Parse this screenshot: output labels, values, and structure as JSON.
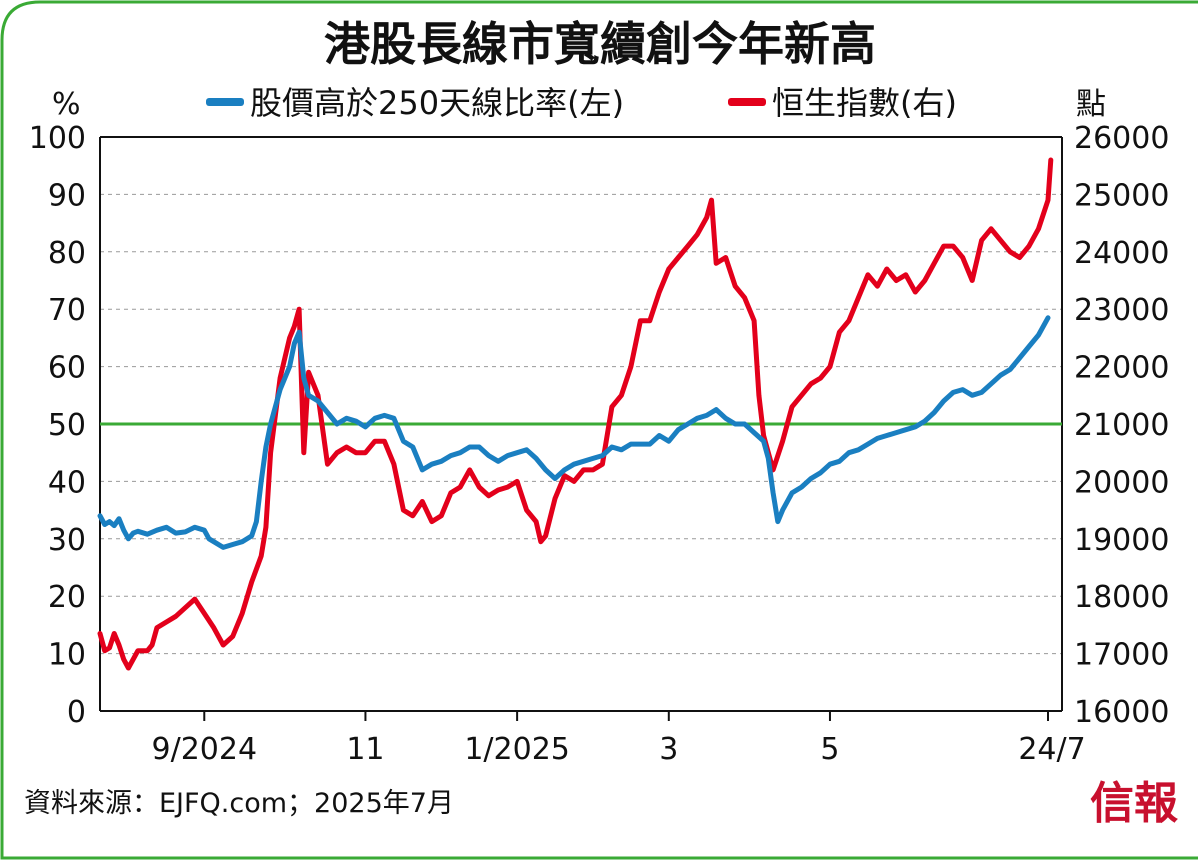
{
  "chart_data": {
    "type": "line",
    "title": "港股長線市寬續創今年新高",
    "ylabel_left": "%",
    "ylabel_right": "點",
    "ylim_left": [
      0,
      100
    ],
    "ylim_right": [
      16000,
      26000
    ],
    "yticks_left": [
      "100",
      "90",
      "80",
      "70",
      "60",
      "50",
      "40",
      "30",
      "20",
      "10",
      "0"
    ],
    "yticks_right": [
      "26000",
      "25000",
      "24000",
      "23000",
      "22000",
      "21000",
      "20000",
      "19000",
      "18000",
      "17000",
      "16000"
    ],
    "xticks": [
      "9/2024",
      "11",
      "1/2025",
      "3",
      "5",
      "24/7"
    ],
    "xtick_positions": [
      0.11,
      0.28,
      0.44,
      0.6,
      0.77,
      1.0
    ],
    "reference_line": {
      "value_left": 50,
      "color": "#3aaa35"
    },
    "grid": "horizontal dashed",
    "legend_placement": "top",
    "series": [
      {
        "name": "股價高於250天線比率(左)",
        "axis": "left",
        "color": "#1a7fc1",
        "points": [
          [
            0,
            34
          ],
          [
            0.005,
            32.5
          ],
          [
            0.01,
            33
          ],
          [
            0.015,
            32.3
          ],
          [
            0.02,
            33.5
          ],
          [
            0.025,
            31.5
          ],
          [
            0.03,
            30
          ],
          [
            0.035,
            31
          ],
          [
            0.04,
            31.3
          ],
          [
            0.05,
            30.8
          ],
          [
            0.06,
            31.5
          ],
          [
            0.07,
            32
          ],
          [
            0.08,
            31
          ],
          [
            0.09,
            31.2
          ],
          [
            0.1,
            32
          ],
          [
            0.11,
            31.5
          ],
          [
            0.115,
            30
          ],
          [
            0.12,
            29.5
          ],
          [
            0.13,
            28.5
          ],
          [
            0.14,
            29
          ],
          [
            0.15,
            29.5
          ],
          [
            0.16,
            30.5
          ],
          [
            0.165,
            33
          ],
          [
            0.17,
            40
          ],
          [
            0.175,
            46
          ],
          [
            0.18,
            50
          ],
          [
            0.19,
            56
          ],
          [
            0.2,
            60
          ],
          [
            0.205,
            64
          ],
          [
            0.21,
            66
          ],
          [
            0.215,
            58
          ],
          [
            0.22,
            55
          ],
          [
            0.23,
            54
          ],
          [
            0.24,
            52
          ],
          [
            0.25,
            50
          ],
          [
            0.26,
            51
          ],
          [
            0.27,
            50.5
          ],
          [
            0.28,
            49.5
          ],
          [
            0.29,
            51
          ],
          [
            0.3,
            51.5
          ],
          [
            0.31,
            51
          ],
          [
            0.32,
            47
          ],
          [
            0.33,
            46
          ],
          [
            0.34,
            42
          ],
          [
            0.35,
            43
          ],
          [
            0.36,
            43.5
          ],
          [
            0.37,
            44.5
          ],
          [
            0.38,
            45
          ],
          [
            0.39,
            46
          ],
          [
            0.4,
            46
          ],
          [
            0.41,
            44.5
          ],
          [
            0.42,
            43.5
          ],
          [
            0.43,
            44.5
          ],
          [
            0.44,
            45
          ],
          [
            0.45,
            45.5
          ],
          [
            0.46,
            44
          ],
          [
            0.47,
            42
          ],
          [
            0.48,
            40.5
          ],
          [
            0.49,
            42
          ],
          [
            0.5,
            43
          ],
          [
            0.51,
            43.5
          ],
          [
            0.52,
            44
          ],
          [
            0.53,
            44.5
          ],
          [
            0.54,
            46
          ],
          [
            0.55,
            45.5
          ],
          [
            0.56,
            46.5
          ],
          [
            0.57,
            46.5
          ],
          [
            0.58,
            46.5
          ],
          [
            0.59,
            48
          ],
          [
            0.6,
            47
          ],
          [
            0.61,
            49
          ],
          [
            0.62,
            50
          ],
          [
            0.63,
            51
          ],
          [
            0.64,
            51.5
          ],
          [
            0.65,
            52.5
          ],
          [
            0.66,
            51
          ],
          [
            0.67,
            50
          ],
          [
            0.68,
            50
          ],
          [
            0.69,
            48.5
          ],
          [
            0.7,
            47
          ],
          [
            0.705,
            44
          ],
          [
            0.71,
            38
          ],
          [
            0.715,
            33
          ],
          [
            0.72,
            35
          ],
          [
            0.73,
            38
          ],
          [
            0.74,
            39
          ],
          [
            0.75,
            40.5
          ],
          [
            0.76,
            41.5
          ],
          [
            0.77,
            43
          ],
          [
            0.78,
            43.5
          ],
          [
            0.79,
            45
          ],
          [
            0.8,
            45.5
          ],
          [
            0.81,
            46.5
          ],
          [
            0.82,
            47.5
          ],
          [
            0.83,
            48
          ],
          [
            0.84,
            48.5
          ],
          [
            0.85,
            49
          ],
          [
            0.86,
            49.5
          ],
          [
            0.87,
            50.5
          ],
          [
            0.88,
            52
          ],
          [
            0.89,
            54
          ],
          [
            0.9,
            55.5
          ],
          [
            0.91,
            56
          ],
          [
            0.92,
            55
          ],
          [
            0.93,
            55.5
          ],
          [
            0.94,
            57
          ],
          [
            0.95,
            58.5
          ],
          [
            0.96,
            59.5
          ],
          [
            0.97,
            61.5
          ],
          [
            0.98,
            63.5
          ],
          [
            0.99,
            65.5
          ],
          [
            1.0,
            68.5
          ]
        ]
      },
      {
        "name": "恒生指數(右)",
        "axis": "right",
        "color": "#e3001b",
        "points": [
          [
            0,
            17350
          ],
          [
            0.005,
            17050
          ],
          [
            0.01,
            17100
          ],
          [
            0.015,
            17350
          ],
          [
            0.02,
            17150
          ],
          [
            0.025,
            16900
          ],
          [
            0.03,
            16750
          ],
          [
            0.04,
            17050
          ],
          [
            0.05,
            17050
          ],
          [
            0.055,
            17150
          ],
          [
            0.06,
            17450
          ],
          [
            0.07,
            17550
          ],
          [
            0.08,
            17650
          ],
          [
            0.09,
            17800
          ],
          [
            0.1,
            17950
          ],
          [
            0.11,
            17700
          ],
          [
            0.12,
            17450
          ],
          [
            0.13,
            17150
          ],
          [
            0.14,
            17300
          ],
          [
            0.15,
            17700
          ],
          [
            0.16,
            18250
          ],
          [
            0.17,
            18700
          ],
          [
            0.175,
            19200
          ],
          [
            0.18,
            20500
          ],
          [
            0.19,
            21800
          ],
          [
            0.2,
            22500
          ],
          [
            0.205,
            22700
          ],
          [
            0.21,
            23000
          ],
          [
            0.215,
            20500
          ],
          [
            0.22,
            21900
          ],
          [
            0.23,
            21500
          ],
          [
            0.24,
            20300
          ],
          [
            0.25,
            20500
          ],
          [
            0.26,
            20600
          ],
          [
            0.27,
            20500
          ],
          [
            0.28,
            20500
          ],
          [
            0.29,
            20700
          ],
          [
            0.3,
            20700
          ],
          [
            0.31,
            20300
          ],
          [
            0.32,
            19500
          ],
          [
            0.33,
            19400
          ],
          [
            0.34,
            19650
          ],
          [
            0.35,
            19300
          ],
          [
            0.36,
            19400
          ],
          [
            0.37,
            19800
          ],
          [
            0.38,
            19900
          ],
          [
            0.39,
            20200
          ],
          [
            0.4,
            19900
          ],
          [
            0.41,
            19750
          ],
          [
            0.42,
            19850
          ],
          [
            0.43,
            19900
          ],
          [
            0.44,
            20000
          ],
          [
            0.45,
            19500
          ],
          [
            0.46,
            19300
          ],
          [
            0.465,
            18950
          ],
          [
            0.47,
            19050
          ],
          [
            0.48,
            19700
          ],
          [
            0.49,
            20100
          ],
          [
            0.5,
            20000
          ],
          [
            0.51,
            20200
          ],
          [
            0.52,
            20200
          ],
          [
            0.53,
            20300
          ],
          [
            0.54,
            21300
          ],
          [
            0.55,
            21500
          ],
          [
            0.56,
            22000
          ],
          [
            0.57,
            22800
          ],
          [
            0.58,
            22800
          ],
          [
            0.59,
            23300
          ],
          [
            0.6,
            23700
          ],
          [
            0.61,
            23900
          ],
          [
            0.62,
            24100
          ],
          [
            0.63,
            24300
          ],
          [
            0.64,
            24600
          ],
          [
            0.645,
            24900
          ],
          [
            0.65,
            23800
          ],
          [
            0.66,
            23900
          ],
          [
            0.67,
            23400
          ],
          [
            0.68,
            23200
          ],
          [
            0.69,
            22800
          ],
          [
            0.695,
            21500
          ],
          [
            0.7,
            20800
          ],
          [
            0.705,
            20500
          ],
          [
            0.71,
            20200
          ],
          [
            0.72,
            20700
          ],
          [
            0.73,
            21300
          ],
          [
            0.74,
            21500
          ],
          [
            0.75,
            21700
          ],
          [
            0.76,
            21800
          ],
          [
            0.77,
            22000
          ],
          [
            0.78,
            22600
          ],
          [
            0.79,
            22800
          ],
          [
            0.8,
            23200
          ],
          [
            0.81,
            23600
          ],
          [
            0.82,
            23400
          ],
          [
            0.83,
            23700
          ],
          [
            0.84,
            23500
          ],
          [
            0.85,
            23600
          ],
          [
            0.86,
            23300
          ],
          [
            0.87,
            23500
          ],
          [
            0.88,
            23800
          ],
          [
            0.89,
            24100
          ],
          [
            0.9,
            24100
          ],
          [
            0.91,
            23900
          ],
          [
            0.92,
            23500
          ],
          [
            0.93,
            24200
          ],
          [
            0.94,
            24400
          ],
          [
            0.95,
            24200
          ],
          [
            0.96,
            24000
          ],
          [
            0.97,
            23900
          ],
          [
            0.98,
            24100
          ],
          [
            0.99,
            24400
          ],
          [
            1.0,
            24900
          ],
          [
            1.003,
            25600
          ]
        ]
      }
    ]
  },
  "source": "資料來源：EJFQ.com；2025年7月",
  "logo_text": "信報"
}
